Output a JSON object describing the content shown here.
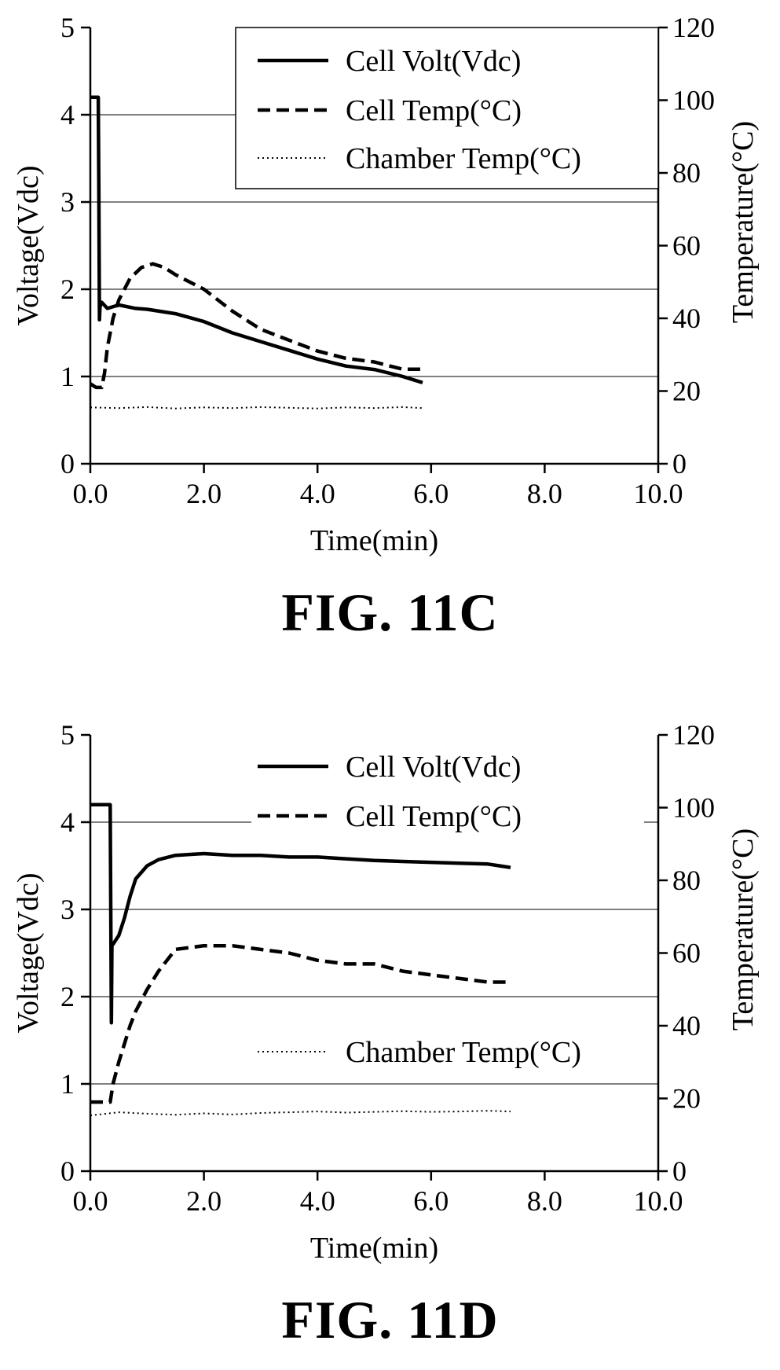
{
  "chart_data": [
    {
      "type": "line",
      "caption": "FIG. 11C",
      "xlabel": "Time(min)",
      "ylabel": "Voltage(Vdc)",
      "ylabel_right": "Temperature(°C)",
      "xlim": [
        0,
        10
      ],
      "ylim": [
        0,
        5
      ],
      "ylim_right": [
        0,
        120
      ],
      "xticks": [
        "0.0",
        "2.0",
        "4.0",
        "6.0",
        "8.0",
        "10.0"
      ],
      "yticks": [
        "0",
        "1",
        "2",
        "3",
        "4",
        "5"
      ],
      "yticks_right": [
        "0",
        "20",
        "40",
        "60",
        "80",
        "100",
        "120"
      ],
      "gridlines_y": [
        1,
        2,
        3,
        4
      ],
      "legend_placement": "top-right",
      "series": [
        {
          "name": "Cell Volt(Vdc)",
          "axis": "left",
          "style": "solid",
          "x": [
            0.0,
            0.05,
            0.1,
            0.14,
            0.15,
            0.16,
            0.17,
            0.2,
            0.3,
            0.5,
            0.8,
            1.0,
            1.5,
            2.0,
            2.5,
            3.0,
            3.5,
            4.0,
            4.5,
            5.0,
            5.5,
            5.85
          ],
          "y": [
            4.2,
            4.2,
            4.2,
            4.2,
            3.2,
            1.65,
            1.8,
            1.85,
            1.78,
            1.82,
            1.78,
            1.77,
            1.72,
            1.63,
            1.5,
            1.4,
            1.3,
            1.2,
            1.12,
            1.08,
            1.0,
            0.93
          ]
        },
        {
          "name": "Cell Temp(°C)",
          "axis": "right",
          "style": "dashed",
          "x": [
            0.0,
            0.1,
            0.2,
            0.25,
            0.3,
            0.4,
            0.5,
            0.7,
            0.9,
            1.1,
            1.3,
            1.5,
            2.0,
            2.5,
            3.0,
            3.5,
            4.0,
            4.5,
            5.0,
            5.5,
            5.85
          ],
          "y": [
            22,
            21,
            21,
            25,
            32,
            40,
            45,
            51,
            54,
            55,
            54,
            52,
            48,
            42,
            37,
            34,
            31,
            29,
            28,
            26,
            26
          ]
        },
        {
          "name": "Chamber Temp(°C)",
          "axis": "right",
          "style": "dotted",
          "x": [
            0.0,
            0.5,
            1.0,
            1.5,
            2.0,
            2.5,
            3.0,
            3.5,
            4.0,
            4.5,
            5.0,
            5.5,
            5.85
          ],
          "y": [
            15.5,
            15.3,
            15.6,
            15.2,
            15.5,
            15.3,
            15.6,
            15.4,
            15.2,
            15.5,
            15.3,
            15.6,
            15.3
          ]
        }
      ]
    },
    {
      "type": "line",
      "caption": "FIG. 11D",
      "xlabel": "Time(min)",
      "ylabel": "Voltage(Vdc)",
      "ylabel_right": "Temperature(°C)",
      "xlim": [
        0,
        10
      ],
      "ylim": [
        0,
        5
      ],
      "ylim_right": [
        0,
        120
      ],
      "xticks": [
        "0.0",
        "2.0",
        "4.0",
        "6.0",
        "8.0",
        "10.0"
      ],
      "yticks": [
        "0",
        "1",
        "2",
        "3",
        "4",
        "5"
      ],
      "yticks_right": [
        "0",
        "20",
        "40",
        "60",
        "80",
        "100",
        "120"
      ],
      "gridlines_y": [
        1,
        2,
        3,
        4
      ],
      "legend_placement": "top-right",
      "series": [
        {
          "name": "Cell Volt(Vdc)",
          "axis": "left",
          "style": "solid",
          "x": [
            0.0,
            0.1,
            0.2,
            0.3,
            0.35,
            0.37,
            0.38,
            0.4,
            0.45,
            0.5,
            0.6,
            0.7,
            0.8,
            1.0,
            1.2,
            1.5,
            2.0,
            2.5,
            3.0,
            3.5,
            4.0,
            4.5,
            5.0,
            5.5,
            6.0,
            6.5,
            7.0,
            7.4
          ],
          "y": [
            4.2,
            4.2,
            4.2,
            4.2,
            4.2,
            1.7,
            2.6,
            2.6,
            2.65,
            2.7,
            2.9,
            3.15,
            3.35,
            3.5,
            3.57,
            3.62,
            3.64,
            3.62,
            3.62,
            3.6,
            3.6,
            3.58,
            3.56,
            3.55,
            3.54,
            3.53,
            3.52,
            3.48
          ]
        },
        {
          "name": "Cell Temp(°C)",
          "axis": "right",
          "style": "dashed",
          "x": [
            0.0,
            0.2,
            0.35,
            0.4,
            0.5,
            0.6,
            0.7,
            0.8,
            1.0,
            1.2,
            1.5,
            2.0,
            2.5,
            3.0,
            3.5,
            4.0,
            4.5,
            5.0,
            5.5,
            6.0,
            6.5,
            7.0,
            7.4
          ],
          "y": [
            19,
            19,
            19,
            24,
            30,
            35,
            40,
            44,
            50,
            55,
            61,
            62,
            62,
            61,
            60,
            58,
            57,
            57,
            55,
            54,
            53,
            52,
            52
          ]
        },
        {
          "name": "Chamber Temp(°C)",
          "axis": "right",
          "style": "dotted",
          "x": [
            0.0,
            0.5,
            1.0,
            1.5,
            2.0,
            2.5,
            3.0,
            3.5,
            4.0,
            4.5,
            5.0,
            5.5,
            6.0,
            6.5,
            7.0,
            7.4
          ],
          "y": [
            15.3,
            16.2,
            15.8,
            15.5,
            15.9,
            15.6,
            16.0,
            16.2,
            16.4,
            16.1,
            16.3,
            16.5,
            16.3,
            16.4,
            16.6,
            16.4
          ]
        }
      ]
    }
  ]
}
